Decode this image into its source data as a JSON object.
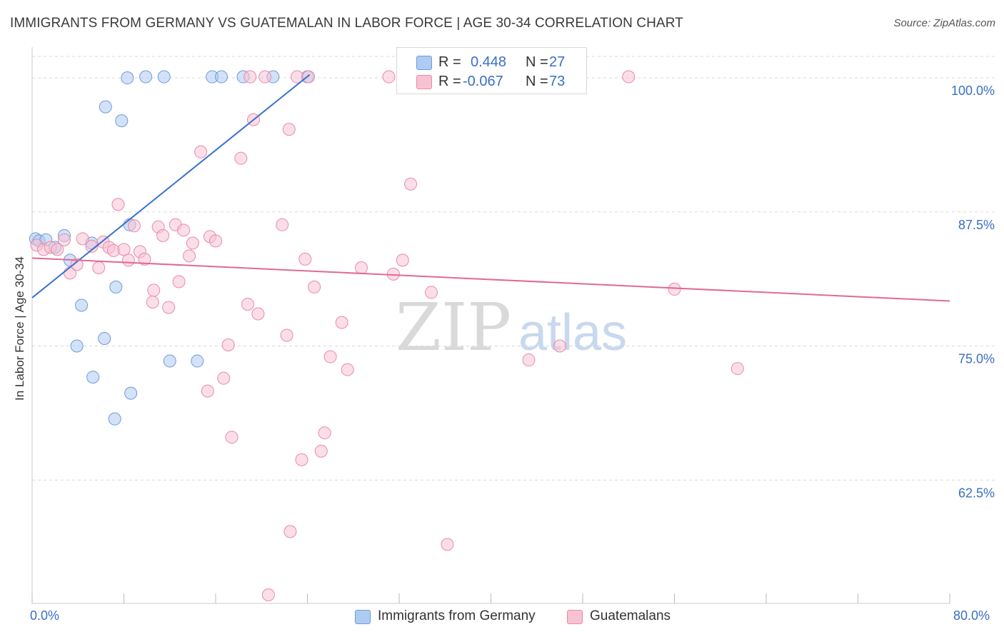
{
  "title": "IMMIGRANTS FROM GERMANY VS GUATEMALAN IN LABOR FORCE | AGE 30-34 CORRELATION CHART",
  "source": "Source: ZipAtlas.com",
  "watermark": {
    "zip": "ZIP",
    "atlas": "atlas"
  },
  "legend": {
    "rows": [
      {
        "r_label": "R =",
        "r_value": "0.448",
        "n_label": "N =",
        "n_value": "27",
        "color": "#aecbf2",
        "stroke": "#6f9ad6"
      },
      {
        "r_label": "R =",
        "r_value": "-0.067",
        "n_label": "N =",
        "n_value": "73",
        "color": "#f7c3d3",
        "stroke": "#e98aa9"
      }
    ]
  },
  "bottom_legend": [
    {
      "label": "Immigrants from Germany",
      "color": "#aecbf2",
      "stroke": "#6f9ad6"
    },
    {
      "label": "Guatemalans",
      "color": "#f7c3d3",
      "stroke": "#e98aa9"
    }
  ],
  "chart_data": {
    "type": "scatter",
    "title": "IMMIGRANTS FROM GERMANY VS GUATEMALAN IN LABOR FORCE | AGE 30-34 CORRELATION CHART",
    "xlabel": "",
    "ylabel": "In Labor Force | Age 30-34",
    "xlim": [
      0,
      80
    ],
    "ylim": [
      51,
      102
    ],
    "x_tick_labels": [
      "0.0%",
      "80.0%"
    ],
    "y_ticks": [
      62.5,
      75.0,
      87.5,
      100.0
    ],
    "y_tick_labels": [
      "62.5%",
      "75.0%",
      "87.5%",
      "100.0%"
    ],
    "series": [
      {
        "name": "Immigrants from Germany",
        "color": "#aecbf2",
        "stroke": "#6f9ad6",
        "points": [
          [
            0.3,
            85.0
          ],
          [
            0.6,
            84.8
          ],
          [
            1.2,
            84.9
          ],
          [
            2.0,
            84.2
          ],
          [
            2.8,
            85.3
          ],
          [
            3.3,
            83.0
          ],
          [
            4.3,
            78.8
          ],
          [
            3.9,
            75.0
          ],
          [
            5.2,
            84.6
          ],
          [
            6.3,
            75.7
          ],
          [
            5.3,
            72.1
          ],
          [
            6.4,
            97.3
          ],
          [
            7.3,
            80.5
          ],
          [
            7.8,
            96.0
          ],
          [
            8.5,
            86.3
          ],
          [
            7.2,
            68.2
          ],
          [
            8.6,
            70.6
          ],
          [
            8.3,
            100.0
          ],
          [
            9.9,
            100.1
          ],
          [
            11.5,
            100.1
          ],
          [
            12.0,
            73.6
          ],
          [
            14.4,
            73.6
          ],
          [
            15.7,
            100.1
          ],
          [
            16.5,
            100.1
          ],
          [
            18.4,
            100.1
          ],
          [
            21.0,
            100.1
          ],
          [
            24.0,
            100.1
          ]
        ],
        "trend": {
          "x": [
            0,
            24.2
          ],
          "y": [
            79.5,
            100.3
          ],
          "color": "#3a72d0"
        }
      },
      {
        "name": "Guatemalans",
        "color": "#f7c3d3",
        "stroke": "#e98aa9",
        "points": [
          [
            0.4,
            84.4
          ],
          [
            1.0,
            84.0
          ],
          [
            1.6,
            84.2
          ],
          [
            2.2,
            84.0
          ],
          [
            2.8,
            84.9
          ],
          [
            3.3,
            81.8
          ],
          [
            3.9,
            82.6
          ],
          [
            4.4,
            85.0
          ],
          [
            5.2,
            84.3
          ],
          [
            5.8,
            82.3
          ],
          [
            6.2,
            84.7
          ],
          [
            6.7,
            84.2
          ],
          [
            7.1,
            83.9
          ],
          [
            7.5,
            88.2
          ],
          [
            8.0,
            84.0
          ],
          [
            8.4,
            83.0
          ],
          [
            8.9,
            86.2
          ],
          [
            9.4,
            83.8
          ],
          [
            9.8,
            83.1
          ],
          [
            10.5,
            79.1
          ],
          [
            10.6,
            80.2
          ],
          [
            11.0,
            86.1
          ],
          [
            11.4,
            85.3
          ],
          [
            11.9,
            78.6
          ],
          [
            12.5,
            86.3
          ],
          [
            12.8,
            81.0
          ],
          [
            13.2,
            85.8
          ],
          [
            13.7,
            83.4
          ],
          [
            14.0,
            84.6
          ],
          [
            14.7,
            93.1
          ],
          [
            15.3,
            70.8
          ],
          [
            15.5,
            85.2
          ],
          [
            16.0,
            84.8
          ],
          [
            16.7,
            72.0
          ],
          [
            17.1,
            75.1
          ],
          [
            17.4,
            66.5
          ],
          [
            18.2,
            92.5
          ],
          [
            18.8,
            78.9
          ],
          [
            19.3,
            96.1
          ],
          [
            19.7,
            78.0
          ],
          [
            20.3,
            100.1
          ],
          [
            20.6,
            51.8
          ],
          [
            21.8,
            86.3
          ],
          [
            22.2,
            76.0
          ],
          [
            22.4,
            95.2
          ],
          [
            22.5,
            57.7
          ],
          [
            23.1,
            100.1
          ],
          [
            23.5,
            64.4
          ],
          [
            23.8,
            83.1
          ],
          [
            24.1,
            100.1
          ],
          [
            24.6,
            80.5
          ],
          [
            25.2,
            65.2
          ],
          [
            25.5,
            66.9
          ],
          [
            26.0,
            74.0
          ],
          [
            27.0,
            77.2
          ],
          [
            27.5,
            72.8
          ],
          [
            28.7,
            82.3
          ],
          [
            31.1,
            100.1
          ],
          [
            31.5,
            81.7
          ],
          [
            32.3,
            83.0
          ],
          [
            33.0,
            90.1
          ],
          [
            34.8,
            80.0
          ],
          [
            36.2,
            56.5
          ],
          [
            38.5,
            100.1
          ],
          [
            40.7,
            100.1
          ],
          [
            43.3,
            73.7
          ],
          [
            46.0,
            75.0
          ],
          [
            52.0,
            100.1
          ],
          [
            56.0,
            80.3
          ],
          [
            61.5,
            72.9
          ],
          [
            19.0,
            100.1
          ],
          [
            36.7,
            100.1
          ],
          [
            42.5,
            100.1
          ]
        ],
        "trend": {
          "x": [
            0,
            80
          ],
          "y": [
            83.2,
            79.2
          ],
          "color": "#e16a93"
        }
      }
    ]
  }
}
